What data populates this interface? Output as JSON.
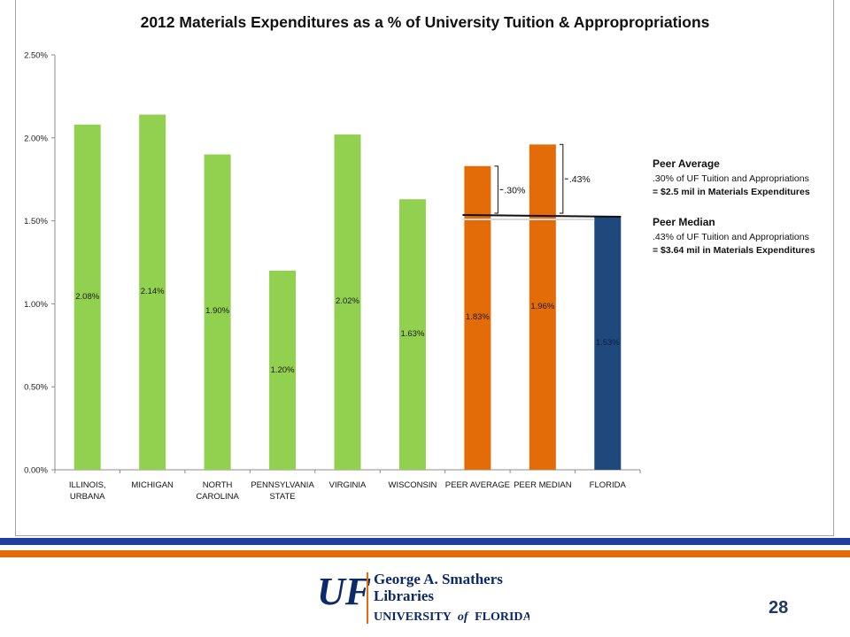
{
  "chart_data": {
    "type": "bar",
    "title": "2012 Materials Expenditures as a % of University Tuition & Appropropriations",
    "categories": [
      "ILLINOIS, URBANA",
      "MICHIGAN",
      "NORTH CAROLINA",
      "PENNSYLVANIA STATE",
      "VIRGINIA",
      "WISCONSIN",
      "PEER AVERAGE",
      "PEER MEDIAN",
      "FLORIDA"
    ],
    "category_lines": [
      [
        "ILLINOIS,",
        "URBANA"
      ],
      [
        "MICHIGAN"
      ],
      [
        "NORTH",
        "CAROLINA"
      ],
      [
        "PENNSYLVANIA",
        "STATE"
      ],
      [
        "VIRGINIA"
      ],
      [
        "WISCONSIN"
      ],
      [
        "PEER AVERAGE"
      ],
      [
        "PEER MEDIAN"
      ],
      [
        "FLORIDA"
      ]
    ],
    "values": [
      2.08,
      2.14,
      1.9,
      1.2,
      2.02,
      1.63,
      1.83,
      1.96,
      1.53
    ],
    "data_labels": [
      "2.08%",
      "2.14%",
      "1.90%",
      "1.20%",
      "2.02%",
      "1.63%",
      "1.83%",
      "1.96%",
      "1.53%"
    ],
    "bar_colors": [
      "#92d050",
      "#92d050",
      "#92d050",
      "#92d050",
      "#92d050",
      "#92d050",
      "#e36c09",
      "#e36c09",
      "#1f497d"
    ],
    "ylim": [
      0,
      2.5
    ],
    "y_ticks": [
      0,
      0.5,
      1.0,
      1.5,
      2.0,
      2.5
    ],
    "y_tick_labels": [
      "0.00%",
      "0.50%",
      "1.00%",
      "1.50%",
      "2.00%",
      "2.50%"
    ],
    "xlabel": "",
    "ylabel": "",
    "grid": false,
    "reference_line_value": 1.53,
    "annotations": [
      {
        "label": ".30%",
        "category_index": 6,
        "from": 1.53,
        "to": 1.83
      },
      {
        "label": ".43%",
        "category_index": 7,
        "from": 1.53,
        "to": 1.96
      }
    ],
    "notes": [
      {
        "heading": "Peer Average",
        "line1": ".30% of UF Tuition and Appropriations",
        "line2": "=  $2.5 mil in Materials Expenditures"
      },
      {
        "heading": "Peer Median",
        "line1": ".43% of UF Tuition and Appropriations",
        "line2": "=  $3.64 mil in Materials Expenditures"
      }
    ]
  },
  "footer": {
    "page_number": "28",
    "logo": {
      "mark": "UF",
      "line1": "George A. Smathers",
      "line2": "Libraries",
      "line3_a": "UNIVERSITY",
      "line3_b": "of",
      "line3_c": "FLORIDA"
    },
    "colors": {
      "blue": "#1f3fa0",
      "orange": "#e36c09",
      "logo_blue": "#0b2a6b",
      "logo_orange": "#e36c09"
    }
  }
}
